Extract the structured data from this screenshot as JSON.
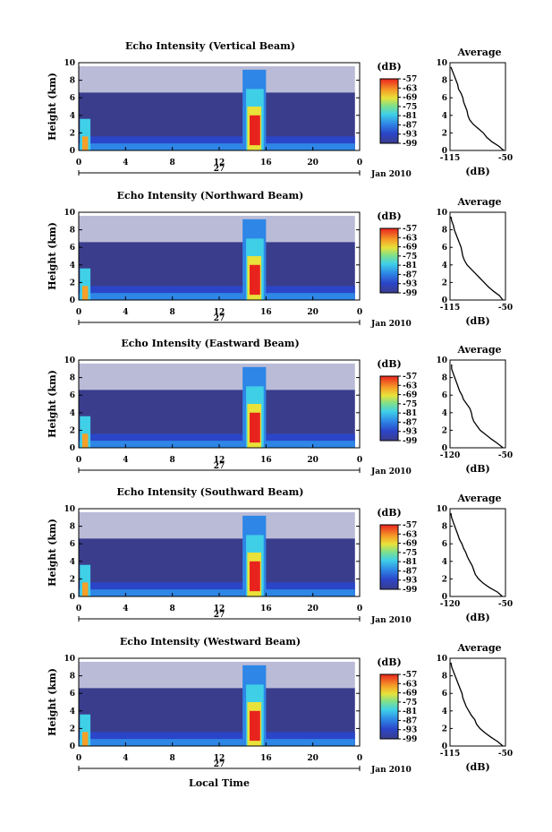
{
  "x_axis_label": "Local Time",
  "chart_data": [
    {
      "type": "heatmap",
      "title": "Echo Intensity (Vertical Beam)",
      "ylabel": "Height (km)",
      "xlabel": "Local Time",
      "x_ticks": [
        "0",
        "4",
        "8",
        "12",
        "16",
        "20",
        "0"
      ],
      "y_ticks": [
        "0",
        "2",
        "4",
        "6",
        "8",
        "10"
      ],
      "xlim": [
        0,
        24
      ],
      "ylim": [
        0,
        10
      ],
      "day_label": "27",
      "date_label": "Jan 2010",
      "colorbar": {
        "unit": "(dB)",
        "ticks": [
          "-57",
          "-63",
          "-69",
          "-75",
          "-81",
          "-87",
          "-93",
          "-99"
        ],
        "range": [
          -99,
          -57
        ]
      },
      "profile": {
        "title": "Average",
        "xlabel": "(dB)",
        "x_ticks": [
          "-115",
          "-50"
        ],
        "xlim": [
          -115,
          -50
        ],
        "y_ticks": [
          "0",
          "2",
          "4",
          "6",
          "8",
          "10"
        ],
        "heights": [
          0,
          0.5,
          1,
          1.5,
          2,
          2.5,
          3,
          3.5,
          4,
          4.5,
          5,
          5.5,
          6,
          6.5,
          7,
          7.5,
          8,
          8.5,
          9,
          9.5
        ],
        "values": [
          -52,
          -58,
          -66,
          -72,
          -76,
          -82,
          -88,
          -92,
          -94,
          -95,
          -97,
          -99,
          -100,
          -102,
          -105,
          -106,
          -108,
          -110,
          -112,
          -114
        ]
      }
    },
    {
      "type": "heatmap",
      "title": "Echo Intensity (Northward Beam)",
      "ylabel": "Height (km)",
      "xlabel": "Local Time",
      "x_ticks": [
        "0",
        "4",
        "8",
        "12",
        "16",
        "20",
        "0"
      ],
      "y_ticks": [
        "0",
        "2",
        "4",
        "6",
        "8",
        "10"
      ],
      "xlim": [
        0,
        24
      ],
      "ylim": [
        0,
        10
      ],
      "day_label": "27",
      "date_label": "Jan 2010",
      "colorbar": {
        "unit": "(dB)",
        "ticks": [
          "-57",
          "-63",
          "-69",
          "-75",
          "-81",
          "-87",
          "-93",
          "-99"
        ],
        "range": [
          -99,
          -57
        ]
      },
      "profile": {
        "title": "Average",
        "xlabel": "(dB)",
        "x_ticks": [
          "-115",
          "-50"
        ],
        "xlim": [
          -115,
          -50
        ],
        "y_ticks": [
          "0",
          "2",
          "4",
          "6",
          "8",
          "10"
        ],
        "heights": [
          0,
          0.5,
          1,
          1.5,
          2,
          2.5,
          3,
          3.5,
          4,
          4.5,
          5,
          5.5,
          6,
          6.5,
          7,
          7.5,
          8,
          8.5,
          9,
          9.5
        ],
        "values": [
          -53,
          -57,
          -64,
          -70,
          -75,
          -80,
          -85,
          -90,
          -95,
          -98,
          -100,
          -101,
          -102,
          -104,
          -106,
          -108,
          -110,
          -111,
          -113,
          -114
        ]
      }
    },
    {
      "type": "heatmap",
      "title": "Echo Intensity (Eastward Beam)",
      "ylabel": "Height (km)",
      "xlabel": "Local Time",
      "x_ticks": [
        "0",
        "4",
        "8",
        "12",
        "16",
        "20",
        "0"
      ],
      "y_ticks": [
        "0",
        "2",
        "4",
        "6",
        "8",
        "10"
      ],
      "xlim": [
        0,
        24
      ],
      "ylim": [
        0,
        10
      ],
      "day_label": "27",
      "date_label": "Jan 2010",
      "colorbar": {
        "unit": "(dB)",
        "ticks": [
          "-57",
          "-63",
          "-69",
          "-75",
          "-81",
          "-87",
          "-93",
          "-99"
        ],
        "range": [
          -99,
          -57
        ]
      },
      "profile": {
        "title": "Average",
        "xlabel": "(dB)",
        "x_ticks": [
          "-120",
          "-50"
        ],
        "xlim": [
          -120,
          -50
        ],
        "y_ticks": [
          "0",
          "2",
          "4",
          "6",
          "8",
          "10"
        ],
        "heights": [
          0,
          0.5,
          1,
          1.5,
          2,
          2.5,
          3,
          3.5,
          4,
          4.5,
          5,
          5.5,
          6,
          6.5,
          7,
          7.5,
          8,
          8.5,
          9,
          9.5
        ],
        "values": [
          -53,
          -60,
          -68,
          -75,
          -82,
          -86,
          -90,
          -92,
          -93,
          -95,
          -99,
          -103,
          -105,
          -108,
          -110,
          -112,
          -114,
          -116,
          -118,
          -118
        ]
      }
    },
    {
      "type": "heatmap",
      "title": "Echo Intensity (Southward Beam)",
      "ylabel": "Height (km)",
      "xlabel": "Local Time",
      "x_ticks": [
        "0",
        "4",
        "8",
        "12",
        "16",
        "20",
        "0"
      ],
      "y_ticks": [
        "0",
        "2",
        "4",
        "6",
        "8",
        "10"
      ],
      "xlim": [
        0,
        24
      ],
      "ylim": [
        0,
        10
      ],
      "day_label": "27",
      "date_label": "Jan 2010",
      "colorbar": {
        "unit": "(dB)",
        "ticks": [
          "-57",
          "-63",
          "-69",
          "-75",
          "-81",
          "-87",
          "-93",
          "-99"
        ],
        "range": [
          -99,
          -57
        ]
      },
      "profile": {
        "title": "Average",
        "xlabel": "(dB)",
        "x_ticks": [
          "-120",
          "-50"
        ],
        "xlim": [
          -120,
          -50
        ],
        "y_ticks": [
          "0",
          "2",
          "4",
          "6",
          "8",
          "10"
        ],
        "heights": [
          0,
          0.5,
          1,
          1.5,
          2,
          2.5,
          3,
          3.5,
          4,
          4.5,
          5,
          5.5,
          6,
          6.5,
          7,
          7.5,
          8,
          8.5,
          9,
          9.5
        ],
        "values": [
          -54,
          -60,
          -70,
          -78,
          -84,
          -88,
          -90,
          -92,
          -95,
          -98,
          -100,
          -103,
          -105,
          -108,
          -110,
          -112,
          -114,
          -116,
          -118,
          -119
        ]
      }
    },
    {
      "type": "heatmap",
      "title": "Echo Intensity (Westward Beam)",
      "ylabel": "Height (km)",
      "xlabel": "Local Time",
      "x_ticks": [
        "0",
        "4",
        "8",
        "12",
        "16",
        "20",
        "0"
      ],
      "y_ticks": [
        "0",
        "2",
        "4",
        "6",
        "8",
        "10"
      ],
      "xlim": [
        0,
        24
      ],
      "ylim": [
        0,
        10
      ],
      "day_label": "27",
      "date_label": "Jan 2010",
      "colorbar": {
        "unit": "(dB)",
        "ticks": [
          "-57",
          "-63",
          "-69",
          "-75",
          "-81",
          "-87",
          "-93",
          "-99"
        ],
        "range": [
          -99,
          -57
        ]
      },
      "profile": {
        "title": "Average",
        "xlabel": "(dB)",
        "x_ticks": [
          "-115",
          "-50"
        ],
        "xlim": [
          -115,
          -50
        ],
        "y_ticks": [
          "0",
          "2",
          "4",
          "6",
          "8",
          "10"
        ],
        "heights": [
          0,
          0.5,
          1,
          1.5,
          2,
          2.5,
          3,
          3.5,
          4,
          4.5,
          5,
          5.5,
          6,
          6.5,
          7,
          7.5,
          8,
          8.5,
          9,
          9.5
        ],
        "values": [
          -53,
          -59,
          -67,
          -74,
          -80,
          -84,
          -86,
          -90,
          -93,
          -96,
          -98,
          -100,
          -101,
          -103,
          -105,
          -107,
          -109,
          -111,
          -113,
          -114
        ]
      }
    }
  ]
}
